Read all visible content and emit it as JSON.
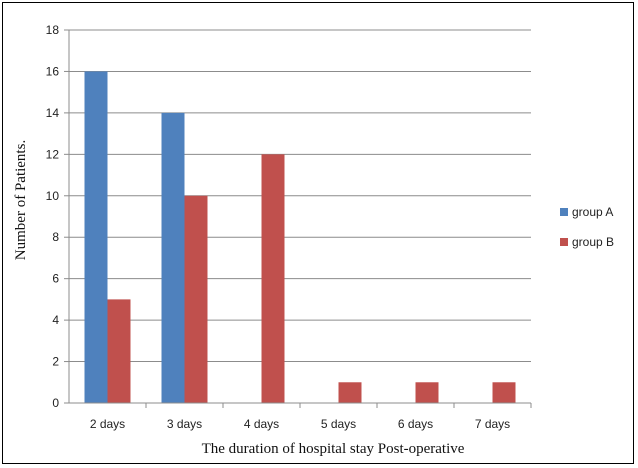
{
  "chart_data": {
    "type": "bar",
    "title": "",
    "xlabel": "The duration of hospital stay Post-operative",
    "ylabel": "Number of Patients.",
    "categories": [
      "2 days",
      "3 days",
      "4 days",
      "5 days",
      "6 days",
      "7 days"
    ],
    "series": [
      {
        "name": "group A",
        "color": "#4f81bd",
        "values": [
          16,
          14,
          0,
          0,
          0,
          0
        ]
      },
      {
        "name": "group B",
        "color": "#c0504d",
        "values": [
          5,
          10,
          12,
          1,
          1,
          1
        ]
      }
    ],
    "ylim": [
      0,
      18
    ],
    "yticks": [
      0,
      2,
      4,
      6,
      8,
      10,
      12,
      14,
      16,
      18
    ],
    "grid": true,
    "legend_position": "right"
  }
}
